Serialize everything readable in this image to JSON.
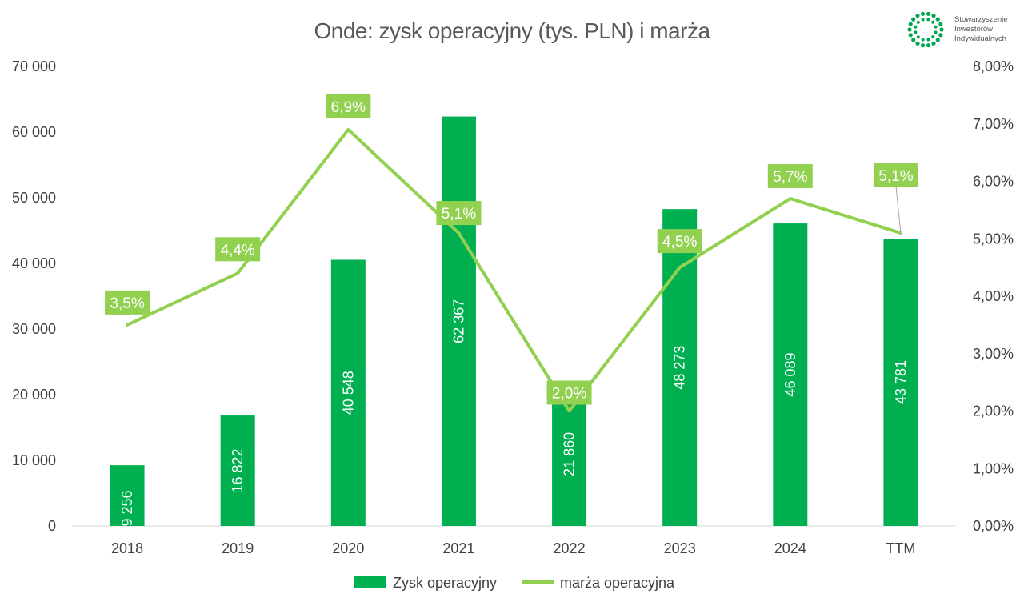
{
  "logo": {
    "lines": [
      "Stowarzyszenie",
      "Inwestorów",
      "Indywidualnych"
    ],
    "color": "#00a651"
  },
  "chart_data": {
    "type": "bar",
    "title": "Onde: zysk operacyjny (tys. PLN) i marża",
    "categories": [
      "2018",
      "2019",
      "2020",
      "2021",
      "2022",
      "2023",
      "2024",
      "TTM"
    ],
    "series": [
      {
        "name": "Zysk operacyjny",
        "kind": "bar",
        "axis": "left",
        "color": "#00b050",
        "values": [
          9256,
          16822,
          40548,
          62367,
          21860,
          48273,
          46089,
          43781
        ],
        "labels": [
          "9 256",
          "16 822",
          "40 548",
          "62 367",
          "21 860",
          "48 273",
          "46 089",
          "43 781"
        ]
      },
      {
        "name": "marża operacyjna",
        "kind": "line",
        "axis": "right",
        "color": "#92d050",
        "values": [
          3.5,
          4.4,
          6.9,
          5.1,
          2.0,
          4.5,
          5.7,
          5.1
        ],
        "labels": [
          "3,5%",
          "4,4%",
          "6,9%",
          "5,1%",
          "2,0%",
          "4,5%",
          "5,7%",
          "5,1%"
        ]
      }
    ],
    "y_left": {
      "min": 0,
      "max": 70000,
      "ticks": [
        0,
        10000,
        20000,
        30000,
        40000,
        50000,
        60000,
        70000
      ],
      "tick_labels": [
        "0",
        "10 000",
        "20 000",
        "30 000",
        "40 000",
        "50 000",
        "60 000",
        "70 000"
      ]
    },
    "y_right": {
      "min": 0,
      "max": 8,
      "ticks": [
        0,
        1,
        2,
        3,
        4,
        5,
        6,
        7,
        8
      ],
      "tick_labels": [
        "0,00%",
        "1,00%",
        "2,00%",
        "3,00%",
        "4,00%",
        "5,00%",
        "6,00%",
        "7,00%",
        "8,00%"
      ]
    },
    "grid": false,
    "legend": "bottom"
  }
}
